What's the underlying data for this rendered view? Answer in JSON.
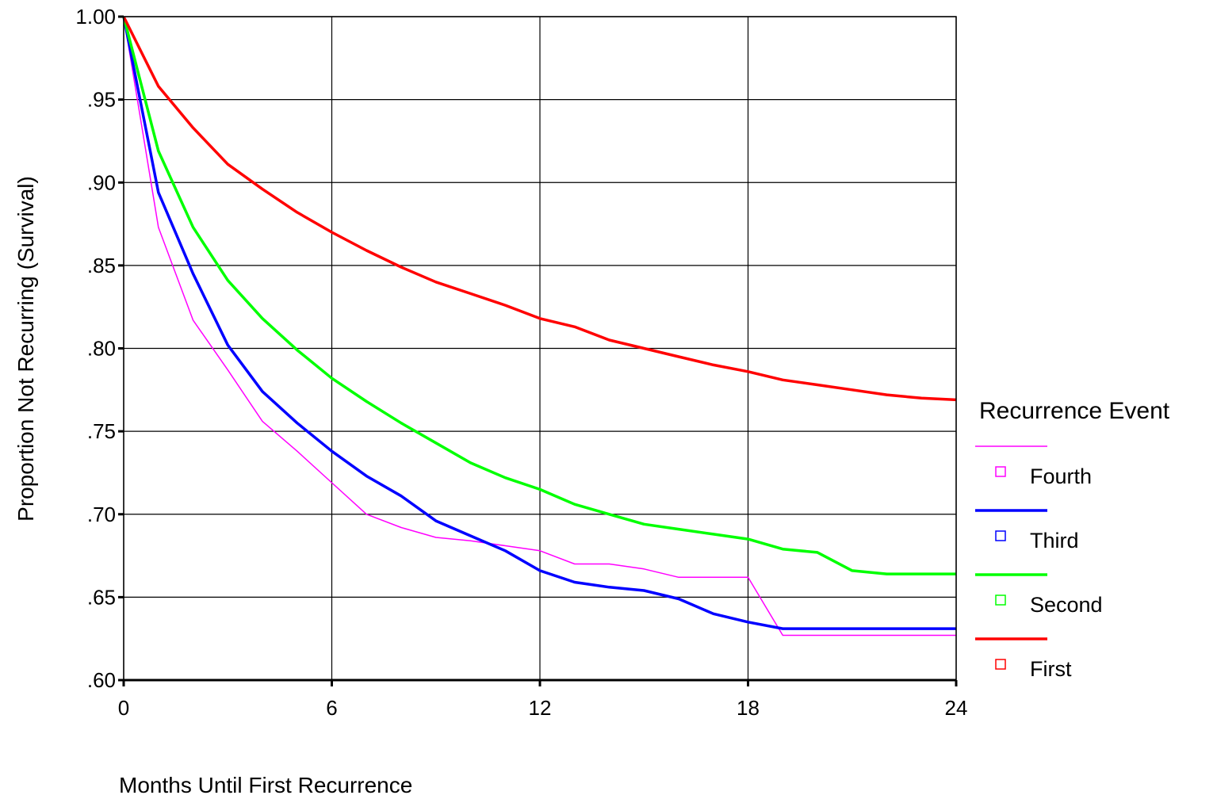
{
  "chart_data": {
    "type": "line",
    "title": "",
    "xlabel": "Months Until First Recurrence",
    "ylabel": "Proportion Not Recurring (Survival)",
    "xlim": [
      0,
      24
    ],
    "ylim": [
      0.6,
      1.0
    ],
    "x_ticks": [
      0,
      6,
      12,
      18,
      24
    ],
    "x_tick_labels": [
      "0",
      "6",
      "12",
      "18",
      "24"
    ],
    "y_ticks": [
      0.6,
      0.65,
      0.7,
      0.75,
      0.8,
      0.85,
      0.9,
      0.95,
      1.0
    ],
    "y_tick_labels": [
      ".60",
      ".65",
      ".70",
      ".75",
      ".80",
      ".85",
      ".90",
      ".95",
      "1.00"
    ],
    "grid": true,
    "legend": {
      "title": "Recurrence Event",
      "position": "right"
    },
    "series": [
      {
        "name": "Fourth",
        "color": "#ff00ff",
        "x": [
          0,
          1,
          2,
          3,
          4,
          5,
          6,
          7,
          8,
          9,
          10,
          11,
          12,
          13,
          14,
          15,
          16,
          17,
          18,
          19,
          20,
          21,
          22,
          23,
          24
        ],
        "y": [
          1.0,
          0.873,
          0.817,
          0.787,
          0.756,
          0.738,
          0.719,
          0.7,
          0.692,
          0.686,
          0.684,
          0.681,
          0.678,
          0.67,
          0.67,
          0.667,
          0.662,
          0.662,
          0.662,
          0.627,
          0.627,
          0.627,
          0.627,
          0.627,
          0.627
        ]
      },
      {
        "name": "Third",
        "color": "#0000ff",
        "x": [
          0,
          1,
          2,
          3,
          4,
          5,
          6,
          7,
          8,
          9,
          10,
          11,
          12,
          13,
          14,
          15,
          16,
          17,
          18,
          19,
          20,
          21,
          22,
          23,
          24
        ],
        "y": [
          1.0,
          0.894,
          0.845,
          0.802,
          0.774,
          0.755,
          0.738,
          0.723,
          0.711,
          0.696,
          0.687,
          0.678,
          0.666,
          0.659,
          0.656,
          0.654,
          0.649,
          0.64,
          0.635,
          0.631,
          0.631,
          0.631,
          0.631,
          0.631,
          0.631
        ]
      },
      {
        "name": "Second",
        "color": "#00ff00",
        "x": [
          0,
          1,
          2,
          3,
          4,
          5,
          6,
          7,
          8,
          9,
          10,
          11,
          12,
          13,
          14,
          15,
          16,
          17,
          18,
          19,
          20,
          21,
          22,
          23,
          24
        ],
        "y": [
          1.0,
          0.919,
          0.873,
          0.841,
          0.818,
          0.799,
          0.782,
          0.768,
          0.755,
          0.743,
          0.731,
          0.722,
          0.715,
          0.706,
          0.7,
          0.694,
          0.691,
          0.688,
          0.685,
          0.679,
          0.677,
          0.666,
          0.664,
          0.664,
          0.664
        ]
      },
      {
        "name": "First",
        "color": "#ff0000",
        "x": [
          0,
          1,
          2,
          3,
          4,
          5,
          6,
          7,
          8,
          9,
          10,
          11,
          12,
          13,
          14,
          15,
          16,
          17,
          18,
          19,
          20,
          21,
          22,
          23,
          24
        ],
        "y": [
          1.0,
          0.958,
          0.933,
          0.911,
          0.896,
          0.882,
          0.87,
          0.859,
          0.849,
          0.84,
          0.833,
          0.826,
          0.818,
          0.813,
          0.805,
          0.8,
          0.795,
          0.79,
          0.786,
          0.781,
          0.778,
          0.775,
          0.772,
          0.77,
          0.769
        ]
      }
    ]
  }
}
